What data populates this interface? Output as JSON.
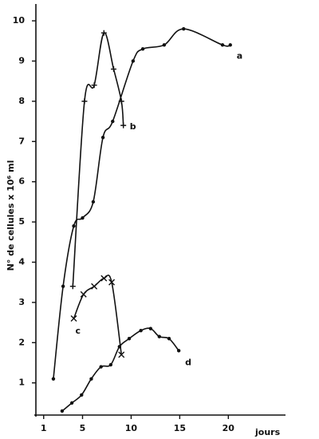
{
  "chart_data": {
    "type": "scatter",
    "x_label": "jours",
    "y_label": "N° de cellules x 10⁶ ml",
    "xlim": [
      0.2,
      25.8
    ],
    "xticks": [
      1,
      5,
      10,
      15,
      20
    ],
    "ylim": [
      0.2,
      10.2
    ],
    "yticks": [
      1,
      2,
      3,
      4,
      5,
      6,
      7,
      8,
      9,
      10
    ],
    "series": [
      {
        "name": "a",
        "color": "#111111",
        "marker": "dot",
        "x": [
          2.0,
          3.0,
          4.1,
          5.0,
          6.1,
          7.1,
          8.1,
          10.2,
          11.2,
          13.4,
          15.4,
          19.4,
          20.2
        ],
        "values": [
          1.1,
          3.4,
          4.9,
          5.1,
          5.5,
          7.1,
          7.5,
          9.0,
          9.3,
          9.4,
          9.8,
          9.4,
          9.4
        ]
      },
      {
        "name": "b",
        "color": "#111111",
        "marker": "plus",
        "x": [
          4.0,
          5.2,
          6.2,
          7.2,
          8.2,
          9.0,
          9.2
        ],
        "values": [
          3.4,
          8.0,
          8.4,
          9.7,
          8.8,
          8.0,
          7.4
        ]
      },
      {
        "name": "c",
        "color": "#111111",
        "marker": "cross",
        "x": [
          4.1,
          5.1,
          6.2,
          7.2,
          8.0,
          9.0
        ],
        "values": [
          2.6,
          3.2,
          3.4,
          3.6,
          3.5,
          1.7
        ]
      },
      {
        "name": "d",
        "color": "#111111",
        "marker": "dot",
        "x": [
          2.9,
          3.9,
          4.9,
          5.9,
          6.9,
          7.9,
          8.8,
          9.8,
          11.0,
          12.0,
          12.9,
          13.9,
          14.9
        ],
        "values": [
          0.3,
          0.5,
          0.7,
          1.1,
          1.4,
          1.45,
          1.9,
          2.1,
          2.3,
          2.35,
          2.15,
          2.1,
          1.8
        ]
      }
    ]
  }
}
